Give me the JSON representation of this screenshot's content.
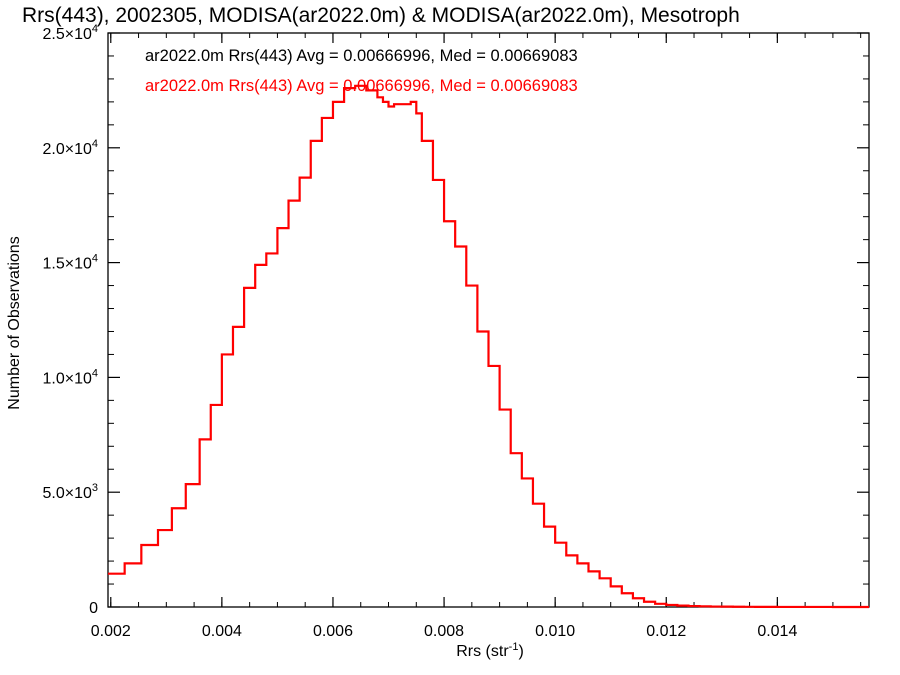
{
  "chart_data": {
    "type": "line",
    "title": "Rrs(443), 2002305, MODISA(ar2022.0m) & MODISA(ar2022.0m), Mesotroph",
    "xlabel": "Rrs (str",
    "xlabel_sup": "-1",
    "xlabel_end": ")",
    "ylabel": "Number of Observations",
    "xlim": [
      0.00195,
      0.01565
    ],
    "ylim": [
      0,
      25000
    ],
    "x_ticks": [
      {
        "value": 0.002,
        "label": "0.002"
      },
      {
        "value": 0.004,
        "label": "0.004"
      },
      {
        "value": 0.006,
        "label": "0.006"
      },
      {
        "value": 0.008,
        "label": "0.008"
      },
      {
        "value": 0.01,
        "label": "0.010"
      },
      {
        "value": 0.012,
        "label": "0.012"
      },
      {
        "value": 0.014,
        "label": "0.014"
      }
    ],
    "y_ticks": [
      {
        "value": 0,
        "mant": "0",
        "exp": ""
      },
      {
        "value": 5000,
        "mant": "5.0×10",
        "exp": "3"
      },
      {
        "value": 10000,
        "mant": "1.0×10",
        "exp": "4"
      },
      {
        "value": 15000,
        "mant": "1.5×10",
        "exp": "4"
      },
      {
        "value": 20000,
        "mant": "2.0×10",
        "exp": "4"
      },
      {
        "value": 25000,
        "mant": "2.5×10",
        "exp": "4"
      }
    ],
    "legend_placement": "top-left",
    "legend": [
      {
        "text": "ar2022.0m Rrs(443) Avg = 0.00666996, Med = 0.00669083",
        "color": "#000000"
      },
      {
        "text": "ar2022.0m Rrs(443) Avg = 0.00666996, Med = 0.00669083",
        "color": "#ff0000"
      }
    ],
    "series": [
      {
        "color": "#ff0000",
        "step": true,
        "x": [
          0.00195,
          0.00225,
          0.00255,
          0.00285,
          0.0031,
          0.00335,
          0.0036,
          0.0038,
          0.004,
          0.0042,
          0.0044,
          0.0046,
          0.0048,
          0.005,
          0.0052,
          0.0054,
          0.0056,
          0.0058,
          0.006,
          0.0062,
          0.0064,
          0.0066,
          0.0068,
          0.0069,
          0.007,
          0.0071,
          0.0072,
          0.0074,
          0.0075,
          0.0076,
          0.0078,
          0.008,
          0.0082,
          0.0084,
          0.0086,
          0.0088,
          0.009,
          0.0092,
          0.0094,
          0.0096,
          0.0098,
          0.01,
          0.0102,
          0.0104,
          0.0106,
          0.0108,
          0.011,
          0.0112,
          0.0114,
          0.0116,
          0.0118,
          0.012,
          0.0122,
          0.0124,
          0.0126,
          0.0128,
          0.013,
          0.0132,
          0.0134,
          0.0136,
          0.014,
          0.0145,
          0.015,
          0.0156
        ],
        "y": [
          1450,
          1900,
          2700,
          3350,
          4300,
          5350,
          7300,
          8800,
          11000,
          12200,
          13900,
          14900,
          15400,
          16500,
          17700,
          18700,
          20300,
          21300,
          22000,
          22600,
          22700,
          22500,
          22200,
          22000,
          21800,
          21900,
          21900,
          22000,
          21500,
          20300,
          18600,
          16800,
          15700,
          14000,
          12000,
          10500,
          8600,
          6700,
          5600,
          4500,
          3500,
          2800,
          2250,
          1900,
          1550,
          1250,
          900,
          600,
          380,
          230,
          140,
          90,
          60,
          40,
          30,
          20,
          15,
          10,
          8,
          5,
          3,
          2,
          1,
          0
        ]
      }
    ]
  }
}
